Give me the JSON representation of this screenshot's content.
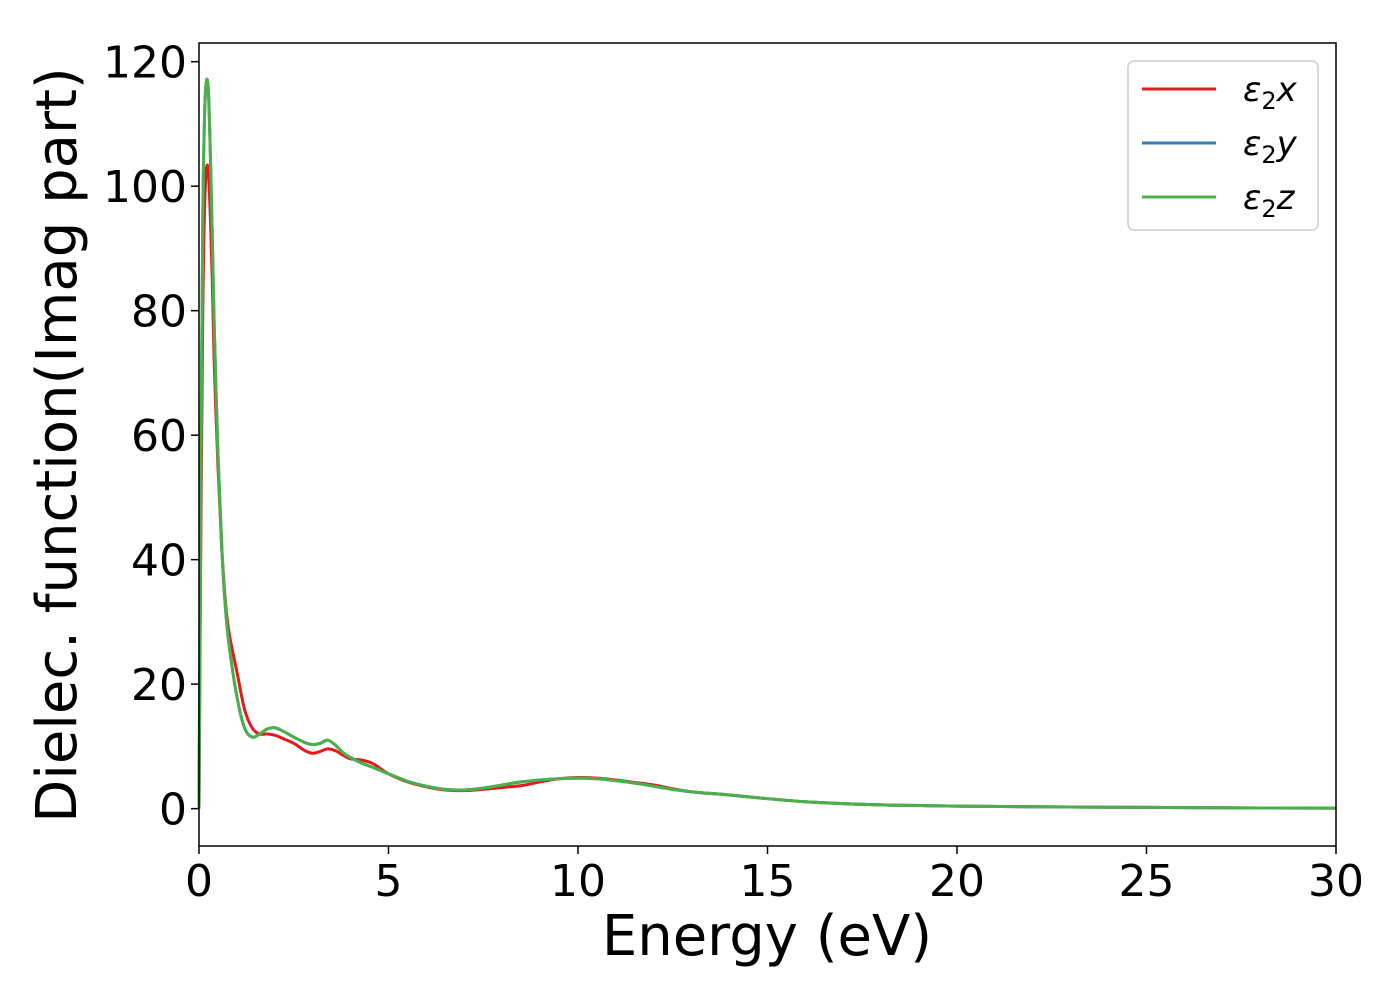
{
  "chart_data": {
    "type": "line",
    "title": "",
    "xlabel": "Energy (eV)",
    "ylabel": "Dielec. function(Imag part)",
    "xlim": [
      0,
      30
    ],
    "ylim": [
      -6,
      123
    ],
    "xticks": [
      0,
      5,
      10,
      15,
      20,
      25,
      30
    ],
    "yticks": [
      0,
      20,
      40,
      60,
      80,
      100,
      120
    ],
    "grid": false,
    "legend_position": "top-right",
    "series": [
      {
        "name": "ε₂x",
        "legend_main": "ε",
        "legend_sub": "2",
        "legend_tail": "x",
        "color": "#e41a1c",
        "x": [
          0,
          0.05,
          0.1,
          0.15,
          0.2,
          0.25,
          0.3,
          0.35,
          0.4,
          0.5,
          0.6,
          0.7,
          0.8,
          1.0,
          1.2,
          1.4,
          1.6,
          1.8,
          2.0,
          2.2,
          2.5,
          2.8,
          3.0,
          3.2,
          3.4,
          3.6,
          3.8,
          4.0,
          4.3,
          4.6,
          5.0,
          5.5,
          6.0,
          6.5,
          7.0,
          7.5,
          8.0,
          8.5,
          9.0,
          9.5,
          10.0,
          10.5,
          11.0,
          11.5,
          12.0,
          12.5,
          13.0,
          14.0,
          15.0,
          16.0,
          17.0,
          18.0,
          19.0,
          20.0,
          22.0,
          25.0,
          28.0,
          30.0
        ],
        "y": [
          0,
          45,
          80,
          97,
          103,
          102,
          95,
          85,
          72,
          55,
          42,
          33,
          28,
          22,
          16,
          13,
          12,
          12,
          11.8,
          11.3,
          10.5,
          9.3,
          8.9,
          9.2,
          9.6,
          9.3,
          8.6,
          8.0,
          7.8,
          7.2,
          5.6,
          4.3,
          3.5,
          3.0,
          2.9,
          3.1,
          3.4,
          3.7,
          4.3,
          4.8,
          5.0,
          4.9,
          4.6,
          4.2,
          3.8,
          3.2,
          2.7,
          2.2,
          1.6,
          1.1,
          0.8,
          0.6,
          0.5,
          0.4,
          0.3,
          0.2,
          0.1,
          0.08
        ]
      },
      {
        "name": "ε₂y",
        "legend_main": "ε",
        "legend_sub": "2",
        "legend_tail": "y",
        "color": "#377eb8",
        "x": [
          0,
          0.05,
          0.1,
          0.15,
          0.2,
          0.25,
          0.3,
          0.35,
          0.4,
          0.5,
          0.6,
          0.7,
          0.8,
          1.0,
          1.2,
          1.4,
          1.6,
          1.8,
          2.0,
          2.2,
          2.5,
          2.8,
          3.0,
          3.2,
          3.4,
          3.6,
          3.8,
          4.0,
          4.3,
          4.6,
          5.0,
          5.5,
          6.0,
          6.5,
          7.0,
          7.5,
          8.0,
          8.5,
          9.0,
          9.5,
          10.0,
          10.5,
          11.0,
          11.5,
          12.0,
          12.5,
          13.0,
          14.0,
          15.0,
          16.0,
          17.0,
          18.0,
          19.0,
          20.0,
          22.0,
          25.0,
          28.0,
          30.0
        ],
        "y": [
          0,
          55,
          95,
          112,
          117,
          115,
          105,
          92,
          78,
          57,
          42,
          32,
          26,
          18,
          13,
          11.5,
          12,
          12.8,
          13,
          12.5,
          11.5,
          10.6,
          10.3,
          10.5,
          11.0,
          10.2,
          9.0,
          8.2,
          7.3,
          6.6,
          5.6,
          4.4,
          3.6,
          3.1,
          3.0,
          3.3,
          3.8,
          4.3,
          4.6,
          4.8,
          4.9,
          4.8,
          4.5,
          4.1,
          3.6,
          3.1,
          2.7,
          2.2,
          1.6,
          1.1,
          0.8,
          0.6,
          0.5,
          0.4,
          0.3,
          0.2,
          0.1,
          0.08
        ]
      },
      {
        "name": "ε₂z",
        "legend_main": "ε",
        "legend_sub": "2",
        "legend_tail": "z",
        "color": "#4daf4a",
        "x": [
          0,
          0.05,
          0.1,
          0.15,
          0.2,
          0.25,
          0.3,
          0.35,
          0.4,
          0.5,
          0.6,
          0.7,
          0.8,
          1.0,
          1.2,
          1.4,
          1.6,
          1.8,
          2.0,
          2.2,
          2.5,
          2.8,
          3.0,
          3.2,
          3.4,
          3.6,
          3.8,
          4.0,
          4.3,
          4.6,
          5.0,
          5.5,
          6.0,
          6.5,
          7.0,
          7.5,
          8.0,
          8.5,
          9.0,
          9.5,
          10.0,
          10.5,
          11.0,
          11.5,
          12.0,
          12.5,
          13.0,
          14.0,
          15.0,
          16.0,
          17.0,
          18.0,
          19.0,
          20.0,
          22.0,
          25.0,
          28.0,
          30.0
        ],
        "y": [
          0,
          55,
          95,
          112,
          117,
          115,
          105,
          92,
          78,
          57,
          42,
          32,
          26,
          18,
          13,
          11.5,
          12,
          12.8,
          13,
          12.5,
          11.5,
          10.6,
          10.3,
          10.5,
          11.0,
          10.2,
          9.0,
          8.2,
          7.3,
          6.6,
          5.6,
          4.4,
          3.6,
          3.1,
          3.0,
          3.3,
          3.8,
          4.3,
          4.6,
          4.8,
          4.9,
          4.8,
          4.5,
          4.1,
          3.6,
          3.1,
          2.7,
          2.2,
          1.6,
          1.1,
          0.8,
          0.6,
          0.5,
          0.4,
          0.3,
          0.2,
          0.1,
          0.08
        ]
      }
    ]
  }
}
